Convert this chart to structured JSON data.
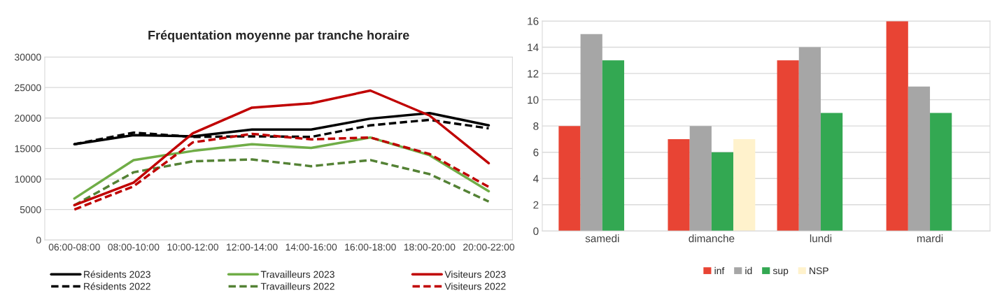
{
  "chart_data": [
    {
      "type": "line",
      "title": "Fréquentation moyenne par tranche horaire",
      "categories": [
        "06:00-08:00",
        "08:00-10:00",
        "10:00-12:00",
        "12:00-14:00",
        "14:00-16:00",
        "16:00-18:00",
        "18:00-20:00",
        "20:00-22:00"
      ],
      "series": [
        {
          "name": "Résidents 2023",
          "color": "#000000",
          "line_style": "solid",
          "values": [
            15700,
            17200,
            17000,
            18100,
            18100,
            19900,
            20800,
            18800
          ]
        },
        {
          "name": "Résidents 2022",
          "color": "#000000",
          "line_style": "dashed",
          "values": [
            15700,
            17600,
            16900,
            17000,
            16900,
            18800,
            19700,
            18300
          ]
        },
        {
          "name": "Travailleurs 2023",
          "color": "#70ad47",
          "line_style": "solid",
          "values": [
            6800,
            13100,
            14600,
            15700,
            15100,
            16800,
            13900,
            8000
          ]
        },
        {
          "name": "Travailleurs 2022",
          "color": "#548235",
          "line_style": "dashed",
          "values": [
            5700,
            11100,
            12900,
            13200,
            12100,
            13100,
            10800,
            6300
          ]
        },
        {
          "name": "Visiteurs 2023",
          "color": "#c00000",
          "line_style": "solid",
          "values": [
            5700,
            9400,
            17500,
            21700,
            22400,
            24500,
            20400,
            12600
          ]
        },
        {
          "name": "Visiteurs 2022",
          "color": "#c00000",
          "line_style": "dashed",
          "values": [
            5000,
            8800,
            16000,
            17400,
            16500,
            16800,
            14100,
            8700
          ]
        }
      ],
      "ylim": [
        0,
        30000
      ],
      "yticks": [
        0,
        5000,
        10000,
        15000,
        20000,
        25000,
        30000
      ],
      "grid": "y",
      "legend": "bottom"
    },
    {
      "type": "bar",
      "categories": [
        "samedi",
        "dimanche",
        "lundi",
        "mardi"
      ],
      "series": [
        {
          "name": "inf",
          "color": "#e84434",
          "values": [
            8,
            7,
            13,
            16
          ]
        },
        {
          "name": "id",
          "color": "#a6a6a6",
          "values": [
            15,
            8,
            14,
            11
          ]
        },
        {
          "name": "sup",
          "color": "#33a852",
          "values": [
            13,
            6,
            9,
            9
          ]
        },
        {
          "name": "NSP",
          "color": "#fff2cc",
          "values": [
            0,
            7,
            0,
            0
          ]
        }
      ],
      "ylim": [
        0,
        16
      ],
      "yticks": [
        0,
        2,
        4,
        6,
        8,
        10,
        12,
        14,
        16
      ],
      "grid": "y",
      "legend": "bottom"
    }
  ]
}
